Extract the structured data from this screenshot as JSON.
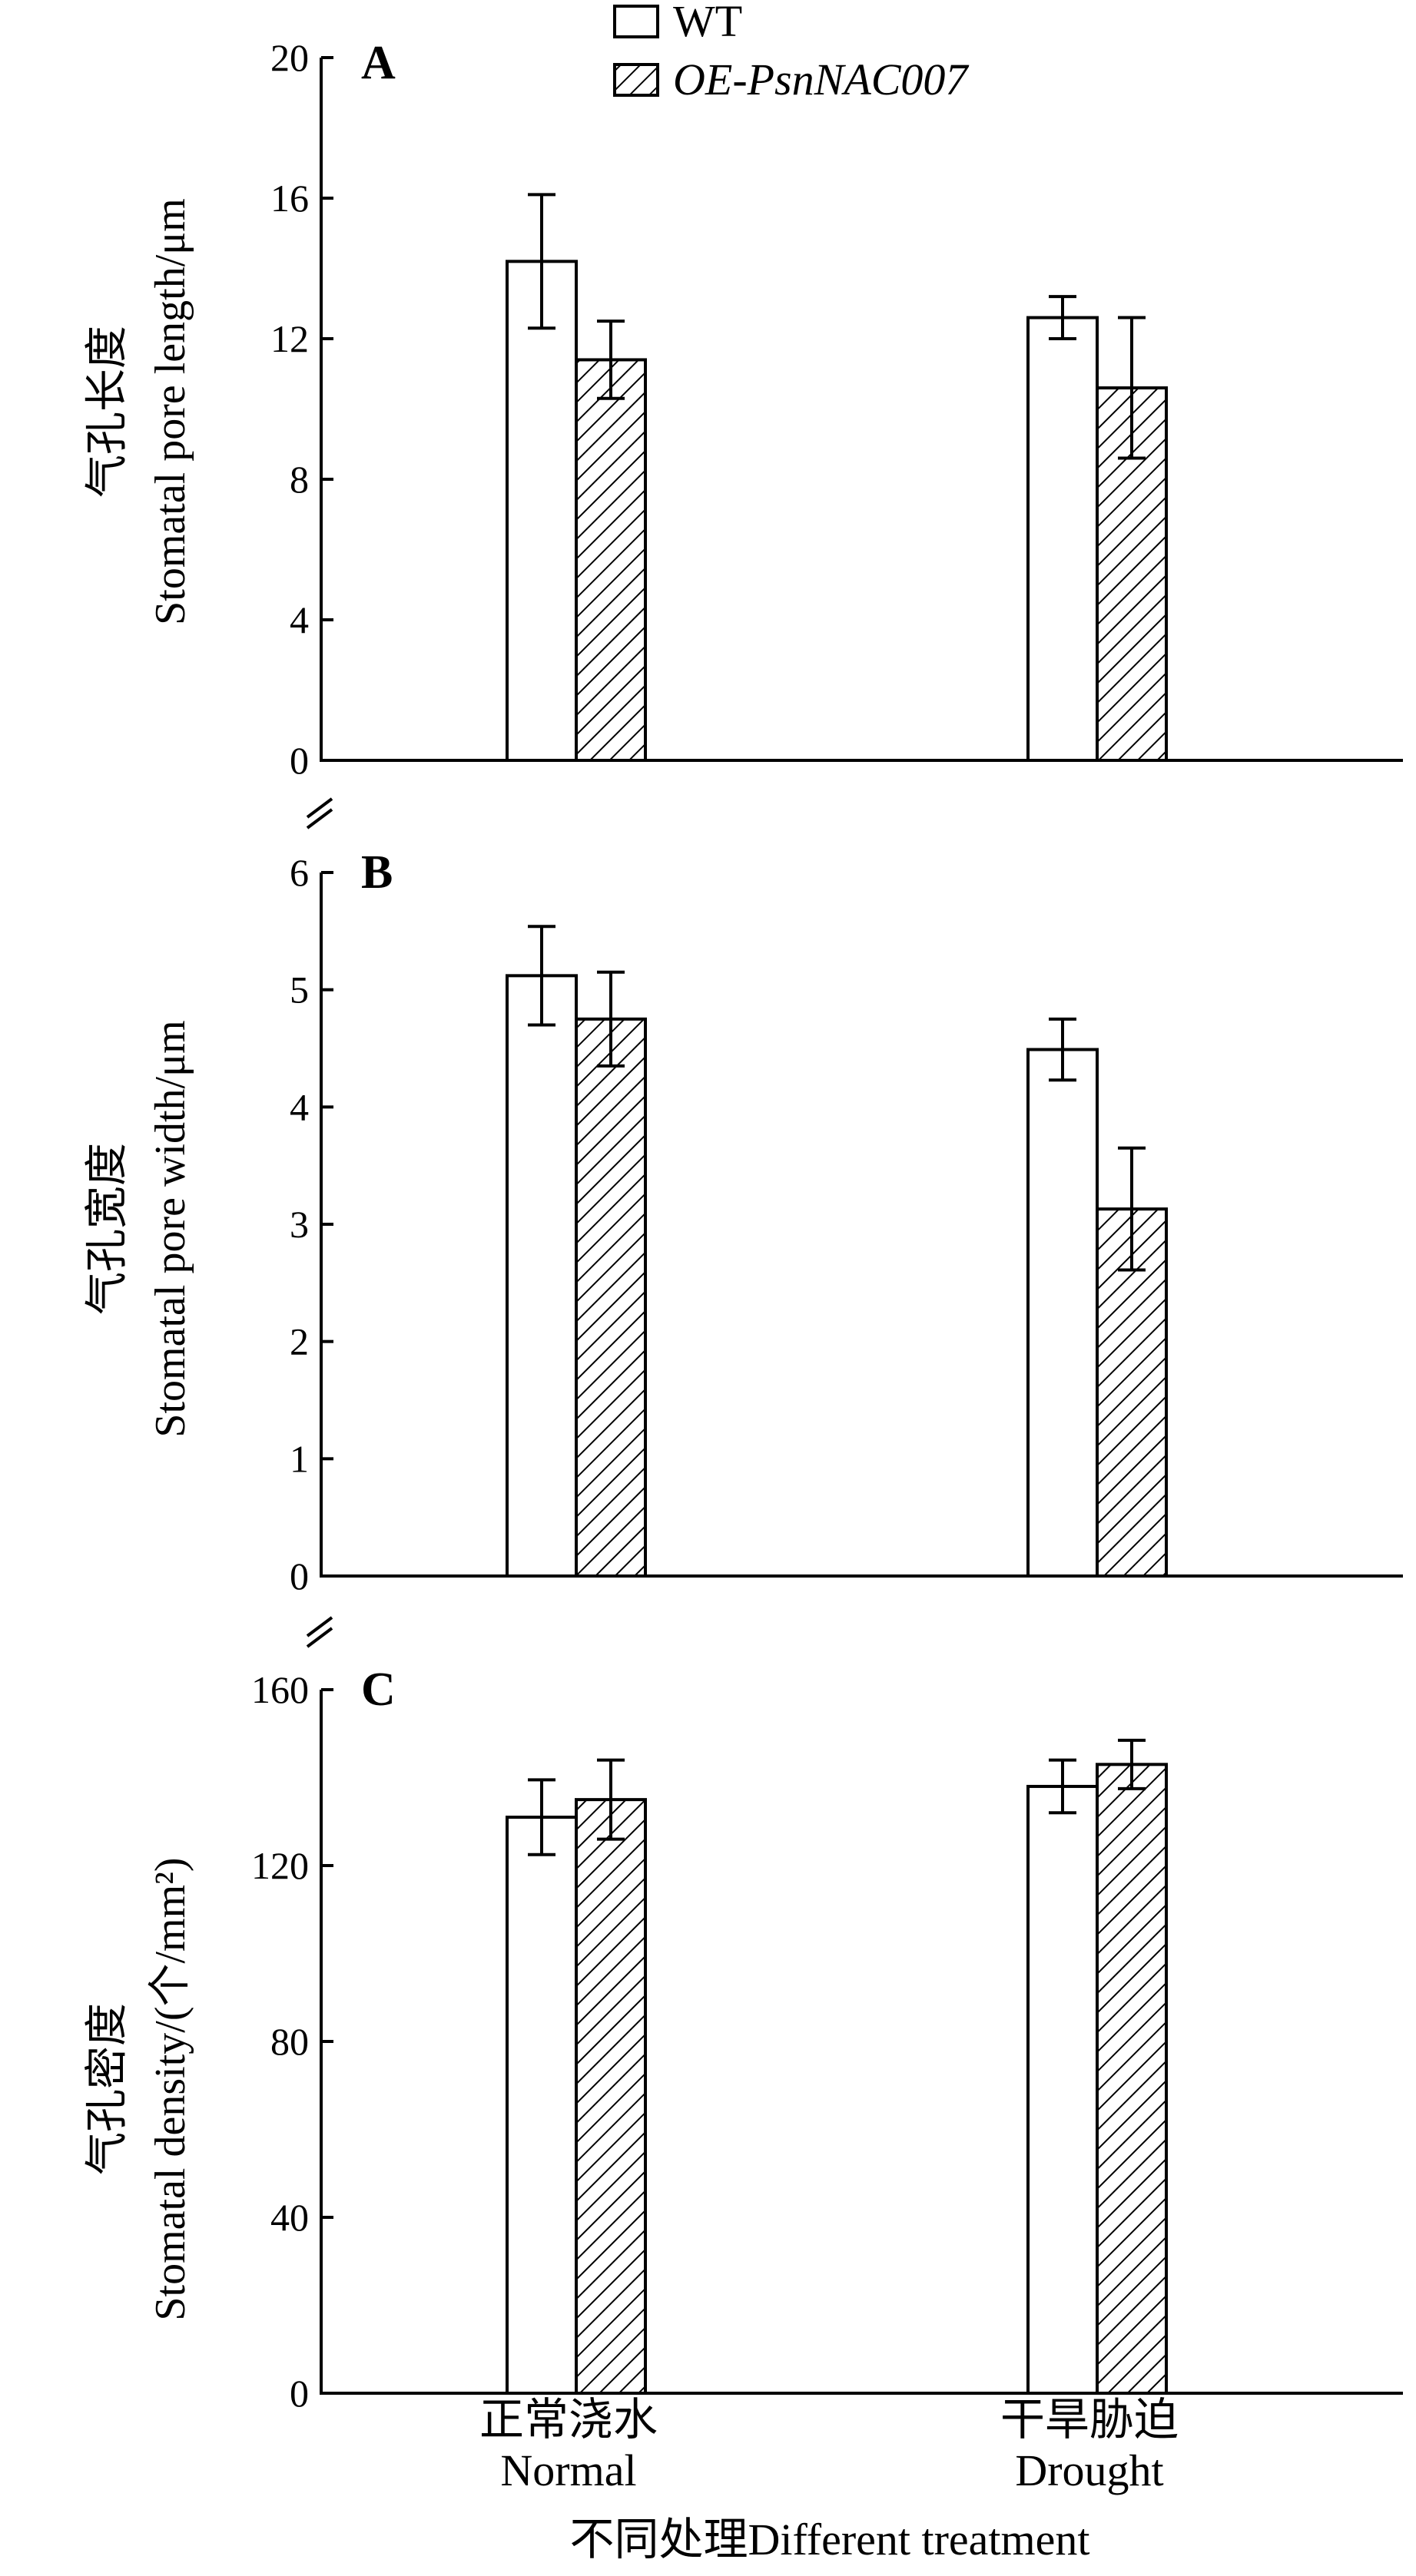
{
  "chart_data": {
    "legend": [
      {
        "label": "WT",
        "italic": false
      },
      {
        "label": "OE-PsnNAC007",
        "italic": true
      }
    ],
    "legend_position": "top-center",
    "categories": [
      {
        "cn": "正常浇水",
        "en": "Normal"
      },
      {
        "cn": "干旱胁迫",
        "en": "Drought"
      }
    ],
    "xlabel": "不同处理Different treatment",
    "panels": [
      {
        "label": "A",
        "type": "bar",
        "ylabel_cn": "气孔长度",
        "ylabel_en": "Stomatal pore length/μm",
        "ylim": [
          0,
          20
        ],
        "yticks": [
          0,
          4,
          8,
          12,
          16,
          20
        ],
        "series": [
          {
            "name": "WT",
            "values": [
              14.2,
              12.6
            ],
            "errors": [
              1.9,
              0.6
            ]
          },
          {
            "name": "OE-PsnNAC007",
            "values": [
              11.4,
              10.6
            ],
            "errors": [
              1.1,
              2.0
            ]
          }
        ]
      },
      {
        "label": "B",
        "type": "bar",
        "ylabel_cn": "气孔宽度",
        "ylabel_en": "Stomatal pore width/μm",
        "ylim": [
          0,
          6
        ],
        "yticks": [
          0,
          1,
          2,
          3,
          4,
          5,
          6
        ],
        "series": [
          {
            "name": "WT",
            "values": [
              5.12,
              4.49
            ],
            "errors": [
              0.42,
              0.26
            ]
          },
          {
            "name": "OE-PsnNAC007",
            "values": [
              4.75,
              3.13
            ],
            "errors": [
              0.4,
              0.52
            ]
          }
        ]
      },
      {
        "label": "C",
        "type": "bar",
        "ylabel_cn": "气孔密度",
        "ylabel_en": "Stomatal density/(个/mm²)",
        "ylim": [
          0,
          160
        ],
        "yticks": [
          0,
          40,
          80,
          120,
          160
        ],
        "series": [
          {
            "name": "WT",
            "values": [
              131,
              138
            ],
            "errors": [
              8.5,
              6
            ]
          },
          {
            "name": "OE-PsnNAC007",
            "values": [
              135,
              143
            ],
            "errors": [
              9,
              5.5
            ]
          }
        ]
      }
    ]
  }
}
